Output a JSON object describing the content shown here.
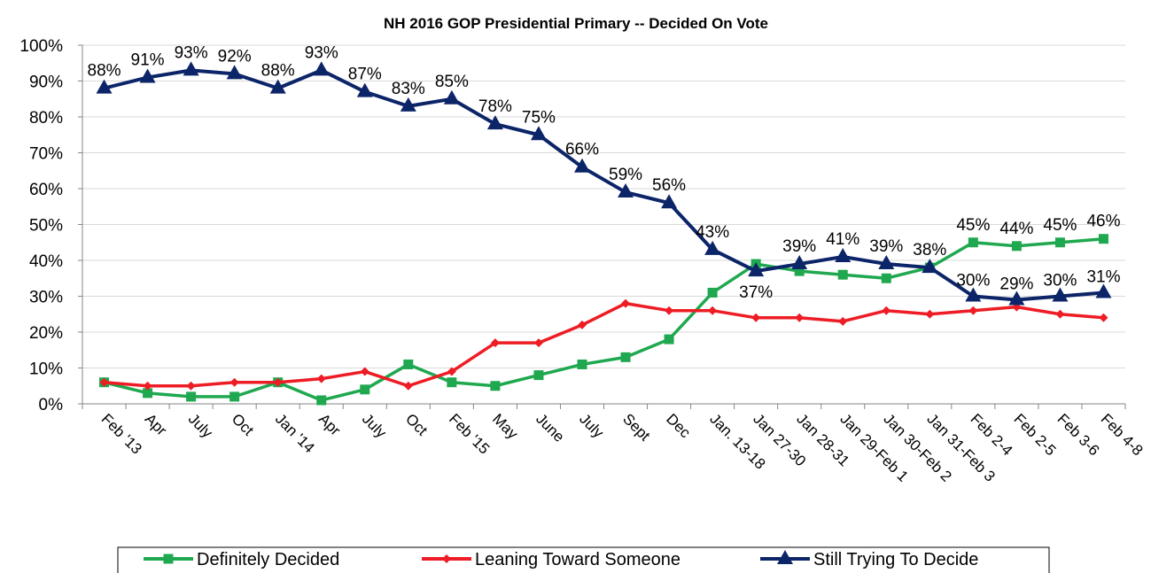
{
  "chart_data": {
    "type": "line",
    "title": "NH 2016 GOP Presidential Primary -- Decided On Vote",
    "xlabel": "",
    "ylabel": "",
    "ylim": [
      0,
      100
    ],
    "y_ticks": [
      "0%",
      "10%",
      "20%",
      "30%",
      "40%",
      "50%",
      "60%",
      "70%",
      "80%",
      "90%",
      "100%"
    ],
    "categories": [
      "Feb '13",
      "Apr",
      "July",
      "Oct",
      "Jan '14",
      "Apr",
      "July",
      "Oct",
      "Feb '15",
      "May",
      "June",
      "July",
      "Sept",
      "Dec",
      "Jan. 13-18",
      "Jan 27-30",
      "Jan 28-31",
      "Jan 29-Feb 1",
      "Jan 30-Feb 2",
      "Jan 31-Feb 3",
      "Feb 2-4",
      "Feb 2-5",
      "Feb 3-6",
      "Feb 4-8"
    ],
    "grid": "horizontal",
    "legend_position": "bottom",
    "series": [
      {
        "name": "Definitely Decided",
        "color": "#1fa84f",
        "marker": "square",
        "values": [
          6,
          3,
          2,
          2,
          6,
          1,
          4,
          11,
          6,
          5,
          8,
          11,
          13,
          18,
          31,
          39,
          37,
          36,
          35,
          38,
          45,
          44,
          45,
          46
        ],
        "labels": []
      },
      {
        "name": "Leaning Toward Someone",
        "color": "#ee1c24",
        "marker": "diamond",
        "values": [
          6,
          5,
          5,
          6,
          6,
          7,
          9,
          5,
          9,
          17,
          17,
          22,
          28,
          26,
          26,
          24,
          24,
          23,
          26,
          25,
          26,
          27,
          25,
          24
        ],
        "labels": []
      },
      {
        "name": "Still Trying To Decide",
        "color": "#0c2468",
        "marker": "triangle",
        "values": [
          88,
          91,
          93,
          92,
          88,
          93,
          87,
          83,
          85,
          78,
          75,
          66,
          59,
          56,
          43,
          37,
          39,
          41,
          39,
          38,
          30,
          29,
          30,
          31
        ],
        "labels": [
          "88%",
          "91%",
          "93%",
          "92%",
          "88%",
          "93%",
          "87%",
          "83%",
          "85%",
          "78%",
          "75%",
          "66%",
          "59%",
          "56%",
          "43%",
          "37%",
          "39%",
          "41%",
          "39%",
          "38%",
          "30%",
          "29%",
          "30%",
          "31%"
        ]
      }
    ],
    "extra_labels": [
      {
        "series": 0,
        "index": 20,
        "text": "45%"
      },
      {
        "series": 0,
        "index": 21,
        "text": "44%"
      },
      {
        "series": 0,
        "index": 22,
        "text": "45%"
      },
      {
        "series": 0,
        "index": 23,
        "text": "46%"
      }
    ]
  }
}
